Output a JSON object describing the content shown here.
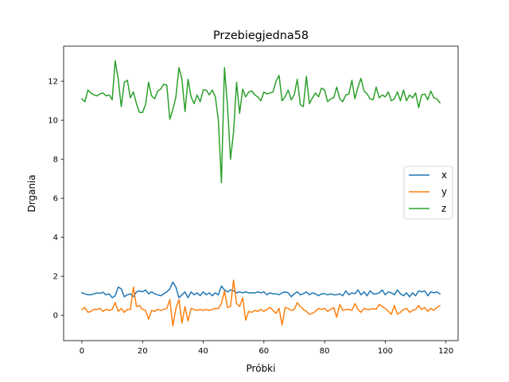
{
  "chart_data": {
    "type": "line",
    "title": "Przebiegjedna58",
    "xlabel": "Próbki",
    "ylabel": "Drgania",
    "xlim": [
      -6,
      124
    ],
    "ylim": [
      -1.3,
      13.8
    ],
    "xticks": [
      0,
      20,
      40,
      60,
      80,
      100,
      120
    ],
    "yticks": [
      0,
      2,
      4,
      6,
      8,
      10,
      12
    ],
    "grid": false,
    "legend_position": "center-right",
    "series": [
      {
        "name": "x",
        "color": "#1f77b4",
        "values": [
          1.15,
          1.1,
          1.05,
          1.05,
          1.1,
          1.15,
          1.12,
          1.18,
          1.05,
          1.1,
          0.9,
          1.0,
          1.45,
          1.35,
          0.95,
          1.05,
          1.1,
          0.95,
          1.2,
          1.25,
          1.2,
          1.3,
          1.1,
          1.2,
          1.1,
          1.05,
          1.0,
          1.1,
          1.2,
          1.35,
          1.7,
          1.45,
          0.9,
          1.05,
          1.2,
          0.9,
          1.2,
          1.05,
          1.15,
          1.0,
          1.2,
          1.05,
          1.15,
          1.0,
          1.15,
          1.05,
          1.5,
          1.3,
          1.2,
          1.3,
          1.25,
          1.15,
          1.2,
          1.15,
          1.2,
          1.15,
          1.15,
          1.15,
          1.2,
          1.15,
          1.2,
          1.05,
          1.15,
          1.1,
          1.1,
          1.05,
          1.15,
          1.2,
          1.15,
          0.95,
          1.1,
          1.2,
          1.05,
          1.1,
          1.2,
          1.05,
          1.15,
          1.1,
          1.0,
          1.1,
          1.1,
          1.05,
          1.1,
          1.05,
          1.05,
          1.1,
          1.0,
          1.25,
          1.05,
          1.15,
          1.1,
          1.3,
          1.05,
          1.2,
          1.0,
          1.25,
          1.1,
          1.1,
          1.15,
          1.3,
          1.05,
          1.2,
          1.15,
          1.05,
          1.3,
          1.1,
          1.0,
          1.15,
          0.95,
          1.15,
          1.0,
          1.25,
          1.2,
          1.25,
          1.0,
          1.2,
          1.15,
          1.2,
          1.1
        ]
      },
      {
        "name": "y",
        "color": "#ff7f0e",
        "values": [
          0.3,
          0.4,
          0.15,
          0.2,
          0.3,
          0.3,
          0.35,
          0.2,
          0.3,
          0.25,
          0.3,
          0.65,
          0.2,
          0.35,
          0.15,
          0.3,
          0.3,
          1.45,
          0.45,
          0.5,
          0.3,
          0.25,
          -0.2,
          0.25,
          0.2,
          0.3,
          0.25,
          0.3,
          0.35,
          0.8,
          -0.55,
          0.35,
          0.8,
          -0.4,
          0.45,
          -0.3,
          0.35,
          0.3,
          0.25,
          0.3,
          0.25,
          0.3,
          0.25,
          0.3,
          0.35,
          0.35,
          0.6,
          1.25,
          0.4,
          0.45,
          1.8,
          0.6,
          0.45,
          0.9,
          -0.25,
          0.2,
          0.15,
          0.25,
          0.2,
          0.3,
          0.2,
          0.3,
          0.4,
          0.25,
          0.1,
          0.35,
          -0.5,
          0.4,
          0.35,
          0.25,
          0.3,
          0.65,
          0.45,
          0.3,
          0.2,
          0.05,
          0.1,
          0.2,
          0.35,
          0.3,
          0.35,
          0.2,
          0.3,
          0.4,
          -0.1,
          0.55,
          0.25,
          0.3,
          0.3,
          0.25,
          0.6,
          0.3,
          0.15,
          0.35,
          0.3,
          0.3,
          0.35,
          0.3,
          0.55,
          0.45,
          0.35,
          0.2,
          0.05,
          0.5,
          0.05,
          0.15,
          0.3,
          0.35,
          0.15,
          0.25,
          0.3,
          0.5,
          0.3,
          0.4,
          0.2,
          0.35,
          0.25,
          0.4,
          0.5
        ]
      },
      {
        "name": "z",
        "color": "#2ca02c",
        "values": [
          11.1,
          10.95,
          11.55,
          11.4,
          11.3,
          11.25,
          11.35,
          11.4,
          11.25,
          11.3,
          11.05,
          13.05,
          12.1,
          10.7,
          11.95,
          12.05,
          11.15,
          11.45,
          10.85,
          10.4,
          10.4,
          10.8,
          11.95,
          11.25,
          11.1,
          11.5,
          11.6,
          11.85,
          11.8,
          10.05,
          10.55,
          11.2,
          12.7,
          12.1,
          10.45,
          12.1,
          11.2,
          10.85,
          11.3,
          10.95,
          11.55,
          11.55,
          11.3,
          11.55,
          11.2,
          10.0,
          6.8,
          12.7,
          10.75,
          8.0,
          9.4,
          11.95,
          10.35,
          11.6,
          11.2,
          11.45,
          11.5,
          11.3,
          11.2,
          11.0,
          11.45,
          11.35,
          11.4,
          11.45,
          12.0,
          12.3,
          11.0,
          11.2,
          11.55,
          11.05,
          11.3,
          12.1,
          10.8,
          10.7,
          12.25,
          10.85,
          11.15,
          11.4,
          11.2,
          11.65,
          11.55,
          10.95,
          11.1,
          11.15,
          11.7,
          11.1,
          10.95,
          11.3,
          11.35,
          12.05,
          11.1,
          11.7,
          12.15,
          11.5,
          11.35,
          11.1,
          11.05,
          11.7,
          11.15,
          11.3,
          11.2,
          11.45,
          11.0,
          11.1,
          11.45,
          11.0,
          11.55,
          11.0,
          11.3,
          11.15,
          11.4,
          10.65,
          11.3,
          11.35,
          11.05,
          11.5,
          11.15,
          11.1,
          10.9
        ]
      }
    ]
  }
}
